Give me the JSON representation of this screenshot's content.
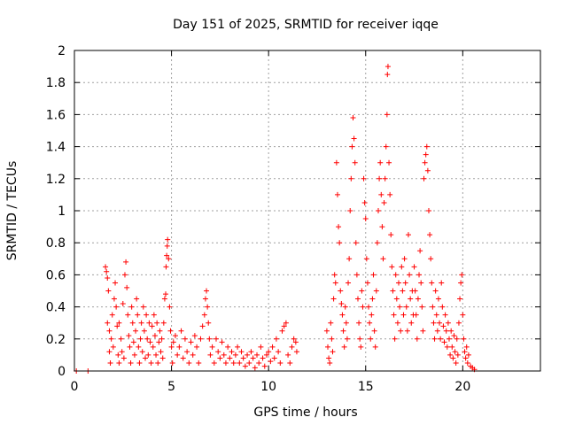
{
  "chart_data": {
    "type": "scatter",
    "title": "Day 151 of 2025, SRMTID for receiver iqqe",
    "xlabel": "GPS time / hours",
    "ylabel": "SRMTID / TECUs",
    "xlim": [
      0,
      24
    ],
    "ylim": [
      0,
      2
    ],
    "xticks": [
      0,
      5,
      10,
      15,
      20
    ],
    "xtick_labels": [
      "0",
      "5",
      "10",
      "15",
      "20"
    ],
    "yticks": [
      0,
      0.2,
      0.4,
      0.6,
      0.8,
      1,
      1.2,
      1.4,
      1.6,
      1.8,
      2
    ],
    "ytick_labels": [
      "0",
      "0.2",
      "0.4",
      "0.6",
      "0.8",
      "1",
      "1.2",
      "1.4",
      "1.6",
      "1.8",
      "2"
    ],
    "grid": true,
    "marker": "+",
    "color": "#ff0000",
    "series": [
      {
        "name": "SRMTID",
        "points": [
          [
            0.1,
            0.0
          ],
          [
            0.7,
            0.0
          ],
          [
            1.6,
            0.65
          ],
          [
            1.65,
            0.62
          ],
          [
            1.7,
            0.58
          ],
          [
            1.75,
            0.5
          ],
          [
            1.7,
            0.3
          ],
          [
            1.8,
            0.25
          ],
          [
            1.8,
            0.12
          ],
          [
            1.85,
            0.05
          ],
          [
            1.9,
            0.2
          ],
          [
            1.95,
            0.35
          ],
          [
            2.0,
            0.15
          ],
          [
            2.05,
            0.45
          ],
          [
            2.1,
            0.55
          ],
          [
            2.15,
            0.4
          ],
          [
            2.2,
            0.28
          ],
          [
            2.25,
            0.1
          ],
          [
            2.3,
            0.05
          ],
          [
            2.3,
            0.3
          ],
          [
            2.4,
            0.2
          ],
          [
            2.45,
            0.12
          ],
          [
            2.5,
            0.42
          ],
          [
            2.55,
            0.08
          ],
          [
            2.6,
            0.6
          ],
          [
            2.65,
            0.68
          ],
          [
            2.7,
            0.52
          ],
          [
            2.75,
            0.35
          ],
          [
            2.8,
            0.22
          ],
          [
            2.85,
            0.15
          ],
          [
            2.9,
            0.05
          ],
          [
            2.95,
            0.4
          ],
          [
            3.0,
            0.3
          ],
          [
            3.05,
            0.18
          ],
          [
            3.1,
            0.1
          ],
          [
            3.15,
            0.25
          ],
          [
            3.2,
            0.45
          ],
          [
            3.25,
            0.35
          ],
          [
            3.3,
            0.15
          ],
          [
            3.35,
            0.05
          ],
          [
            3.4,
            0.2
          ],
          [
            3.45,
            0.3
          ],
          [
            3.5,
            0.12
          ],
          [
            3.55,
            0.4
          ],
          [
            3.6,
            0.25
          ],
          [
            3.65,
            0.08
          ],
          [
            3.7,
            0.35
          ],
          [
            3.75,
            0.2
          ],
          [
            3.8,
            0.1
          ],
          [
            3.85,
            0.3
          ],
          [
            3.9,
            0.18
          ],
          [
            3.95,
            0.05
          ],
          [
            4.0,
            0.28
          ],
          [
            4.05,
            0.15
          ],
          [
            4.1,
            0.35
          ],
          [
            4.15,
            0.22
          ],
          [
            4.2,
            0.1
          ],
          [
            4.25,
            0.3
          ],
          [
            4.3,
            0.05
          ],
          [
            4.35,
            0.18
          ],
          [
            4.4,
            0.25
          ],
          [
            4.45,
            0.12
          ],
          [
            4.5,
            0.2
          ],
          [
            4.55,
            0.08
          ],
          [
            4.6,
            0.3
          ],
          [
            4.65,
            0.45
          ],
          [
            4.7,
            0.48
          ],
          [
            4.72,
            0.65
          ],
          [
            4.75,
            0.72
          ],
          [
            4.78,
            0.78
          ],
          [
            4.8,
            0.82
          ],
          [
            4.85,
            0.7
          ],
          [
            4.9,
            0.4
          ],
          [
            4.95,
            0.25
          ],
          [
            5.0,
            0.15
          ],
          [
            5.05,
            0.05
          ],
          [
            5.1,
            0.18
          ],
          [
            5.2,
            0.22
          ],
          [
            5.3,
            0.1
          ],
          [
            5.4,
            0.15
          ],
          [
            5.5,
            0.25
          ],
          [
            5.6,
            0.08
          ],
          [
            5.7,
            0.2
          ],
          [
            5.8,
            0.12
          ],
          [
            5.9,
            0.05
          ],
          [
            6.0,
            0.18
          ],
          [
            6.1,
            0.1
          ],
          [
            6.2,
            0.22
          ],
          [
            6.3,
            0.15
          ],
          [
            6.4,
            0.05
          ],
          [
            6.5,
            0.2
          ],
          [
            6.6,
            0.28
          ],
          [
            6.7,
            0.35
          ],
          [
            6.75,
            0.45
          ],
          [
            6.8,
            0.5
          ],
          [
            6.85,
            0.4
          ],
          [
            6.9,
            0.3
          ],
          [
            6.95,
            0.2
          ],
          [
            7.0,
            0.1
          ],
          [
            7.1,
            0.15
          ],
          [
            7.2,
            0.05
          ],
          [
            7.3,
            0.2
          ],
          [
            7.4,
            0.12
          ],
          [
            7.5,
            0.08
          ],
          [
            7.6,
            0.18
          ],
          [
            7.7,
            0.1
          ],
          [
            7.8,
            0.05
          ],
          [
            7.9,
            0.15
          ],
          [
            8.0,
            0.08
          ],
          [
            8.1,
            0.12
          ],
          [
            8.2,
            0.05
          ],
          [
            8.3,
            0.1
          ],
          [
            8.4,
            0.15
          ],
          [
            8.5,
            0.05
          ],
          [
            8.6,
            0.12
          ],
          [
            8.7,
            0.08
          ],
          [
            8.8,
            0.03
          ],
          [
            8.9,
            0.1
          ],
          [
            9.0,
            0.05
          ],
          [
            9.1,
            0.12
          ],
          [
            9.2,
            0.08
          ],
          [
            9.3,
            0.02
          ],
          [
            9.4,
            0.1
          ],
          [
            9.5,
            0.05
          ],
          [
            9.6,
            0.15
          ],
          [
            9.7,
            0.08
          ],
          [
            9.8,
            0.03
          ],
          [
            9.9,
            0.1
          ],
          [
            10.0,
            0.12
          ],
          [
            10.1,
            0.06
          ],
          [
            10.2,
            0.15
          ],
          [
            10.3,
            0.08
          ],
          [
            10.4,
            0.2
          ],
          [
            10.5,
            0.12
          ],
          [
            10.6,
            0.05
          ],
          [
            10.7,
            0.25
          ],
          [
            10.8,
            0.28
          ],
          [
            10.9,
            0.3
          ],
          [
            11.0,
            0.1
          ],
          [
            11.1,
            0.05
          ],
          [
            11.2,
            0.15
          ],
          [
            11.3,
            0.2
          ],
          [
            11.4,
            0.18
          ],
          [
            11.45,
            0.12
          ],
          [
            13.0,
            0.25
          ],
          [
            13.05,
            0.15
          ],
          [
            13.1,
            0.08
          ],
          [
            13.15,
            0.05
          ],
          [
            13.2,
            0.3
          ],
          [
            13.25,
            0.2
          ],
          [
            13.3,
            0.12
          ],
          [
            13.35,
            0.45
          ],
          [
            13.4,
            0.6
          ],
          [
            13.45,
            0.55
          ],
          [
            13.5,
            1.3
          ],
          [
            13.55,
            1.1
          ],
          [
            13.6,
            0.9
          ],
          [
            13.65,
            0.8
          ],
          [
            13.7,
            0.5
          ],
          [
            13.75,
            0.42
          ],
          [
            13.8,
            0.35
          ],
          [
            13.85,
            0.25
          ],
          [
            13.9,
            0.15
          ],
          [
            13.95,
            0.4
          ],
          [
            14.0,
            0.3
          ],
          [
            14.05,
            0.2
          ],
          [
            14.1,
            0.55
          ],
          [
            14.15,
            0.7
          ],
          [
            14.2,
            1.0
          ],
          [
            14.25,
            1.2
          ],
          [
            14.3,
            1.4
          ],
          [
            14.35,
            1.58
          ],
          [
            14.4,
            1.45
          ],
          [
            14.45,
            1.3
          ],
          [
            14.5,
            0.8
          ],
          [
            14.55,
            0.6
          ],
          [
            14.6,
            0.45
          ],
          [
            14.65,
            0.3
          ],
          [
            14.7,
            0.2
          ],
          [
            14.75,
            0.15
          ],
          [
            14.8,
            0.5
          ],
          [
            14.85,
            0.4
          ],
          [
            14.9,
            1.2
          ],
          [
            14.95,
            1.05
          ],
          [
            15.0,
            0.95
          ],
          [
            15.05,
            0.7
          ],
          [
            15.1,
            0.55
          ],
          [
            15.15,
            0.4
          ],
          [
            15.2,
            0.3
          ],
          [
            15.25,
            0.2
          ],
          [
            15.3,
            0.35
          ],
          [
            15.35,
            0.45
          ],
          [
            15.4,
            0.6
          ],
          [
            15.45,
            0.25
          ],
          [
            15.5,
            0.15
          ],
          [
            15.55,
            0.5
          ],
          [
            15.6,
            0.8
          ],
          [
            15.65,
            1.0
          ],
          [
            15.7,
            1.2
          ],
          [
            15.75,
            1.3
          ],
          [
            15.8,
            1.1
          ],
          [
            15.85,
            0.9
          ],
          [
            15.9,
            0.7
          ],
          [
            15.95,
            1.05
          ],
          [
            16.0,
            1.2
          ],
          [
            16.05,
            1.4
          ],
          [
            16.1,
            1.6
          ],
          [
            16.12,
            1.85
          ],
          [
            16.15,
            1.9
          ],
          [
            16.2,
            1.3
          ],
          [
            16.25,
            1.1
          ],
          [
            16.3,
            0.85
          ],
          [
            16.35,
            0.65
          ],
          [
            16.4,
            0.5
          ],
          [
            16.45,
            0.35
          ],
          [
            16.5,
            0.2
          ],
          [
            16.55,
            0.6
          ],
          [
            16.6,
            0.45
          ],
          [
            16.65,
            0.3
          ],
          [
            16.7,
            0.55
          ],
          [
            16.75,
            0.4
          ],
          [
            16.8,
            0.25
          ],
          [
            16.85,
            0.65
          ],
          [
            16.9,
            0.5
          ],
          [
            16.95,
            0.35
          ],
          [
            17.0,
            0.7
          ],
          [
            17.05,
            0.55
          ],
          [
            17.1,
            0.4
          ],
          [
            17.15,
            0.25
          ],
          [
            17.2,
            0.85
          ],
          [
            17.25,
            0.6
          ],
          [
            17.3,
            0.45
          ],
          [
            17.35,
            0.3
          ],
          [
            17.4,
            0.5
          ],
          [
            17.45,
            0.35
          ],
          [
            17.5,
            0.65
          ],
          [
            17.55,
            0.5
          ],
          [
            17.6,
            0.35
          ],
          [
            17.65,
            0.2
          ],
          [
            17.7,
            0.45
          ],
          [
            17.75,
            0.6
          ],
          [
            17.8,
            0.75
          ],
          [
            17.85,
            0.55
          ],
          [
            17.9,
            0.4
          ],
          [
            17.95,
            0.25
          ],
          [
            18.0,
            1.2
          ],
          [
            18.05,
            1.3
          ],
          [
            18.1,
            1.35
          ],
          [
            18.15,
            1.4
          ],
          [
            18.2,
            1.25
          ],
          [
            18.25,
            1.0
          ],
          [
            18.3,
            0.85
          ],
          [
            18.35,
            0.7
          ],
          [
            18.4,
            0.55
          ],
          [
            18.45,
            0.4
          ],
          [
            18.5,
            0.3
          ],
          [
            18.55,
            0.2
          ],
          [
            18.6,
            0.5
          ],
          [
            18.65,
            0.35
          ],
          [
            18.7,
            0.25
          ],
          [
            18.75,
            0.45
          ],
          [
            18.8,
            0.3
          ],
          [
            18.85,
            0.2
          ],
          [
            18.9,
            0.55
          ],
          [
            18.95,
            0.4
          ],
          [
            19.0,
            0.28
          ],
          [
            19.05,
            0.18
          ],
          [
            19.1,
            0.35
          ],
          [
            19.15,
            0.25
          ],
          [
            19.2,
            0.15
          ],
          [
            19.25,
            0.3
          ],
          [
            19.3,
            0.2
          ],
          [
            19.35,
            0.1
          ],
          [
            19.4,
            0.25
          ],
          [
            19.45,
            0.15
          ],
          [
            19.5,
            0.08
          ],
          [
            19.55,
            0.22
          ],
          [
            19.6,
            0.12
          ],
          [
            19.65,
            0.05
          ],
          [
            19.7,
            0.2
          ],
          [
            19.75,
            0.1
          ],
          [
            19.8,
            0.3
          ],
          [
            19.85,
            0.45
          ],
          [
            19.9,
            0.55
          ],
          [
            19.95,
            0.6
          ],
          [
            20.0,
            0.35
          ],
          [
            20.05,
            0.2
          ],
          [
            20.1,
            0.12
          ],
          [
            20.15,
            0.08
          ],
          [
            20.2,
            0.15
          ],
          [
            20.25,
            0.05
          ],
          [
            20.3,
            0.1
          ],
          [
            20.4,
            0.03
          ],
          [
            20.5,
            0.02
          ],
          [
            20.6,
            0.01
          ]
        ]
      }
    ]
  }
}
